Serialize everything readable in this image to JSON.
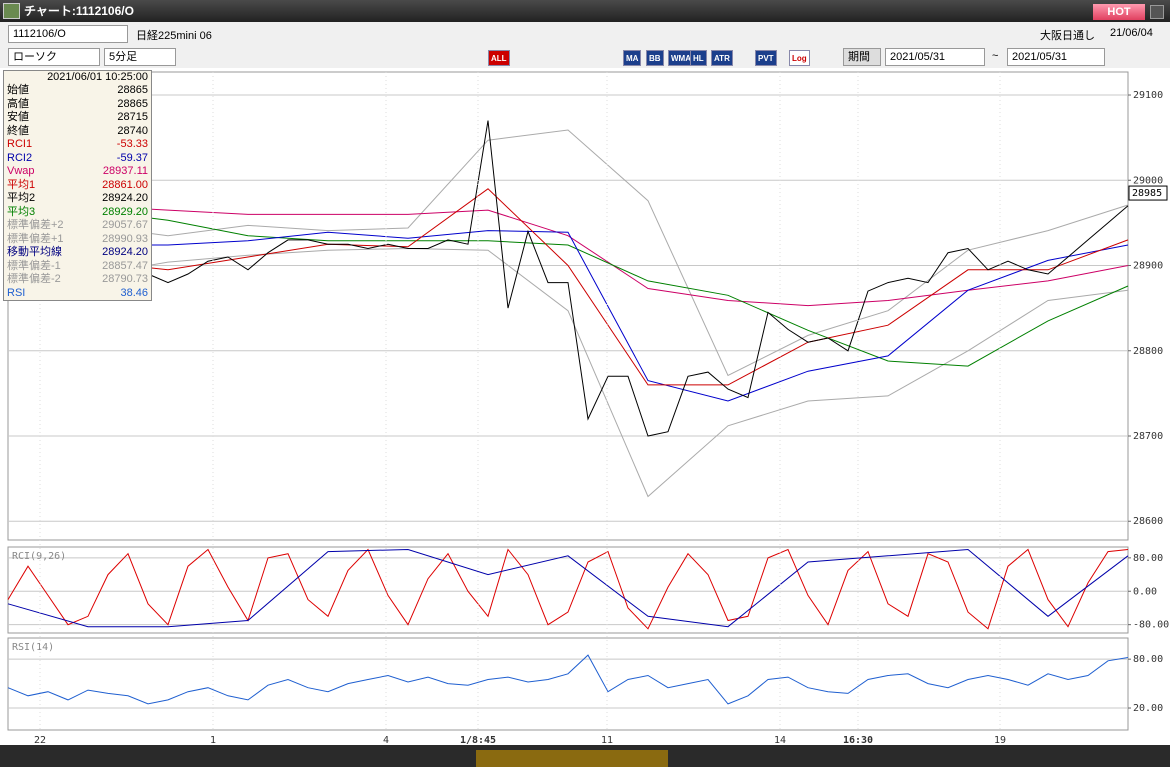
{
  "window": {
    "title": "チャート:1112106/O",
    "hot": "HOT"
  },
  "toolbar": {
    "symbol": "1112106/O",
    "instrument": "日経225mini 06",
    "session": "大阪日通し",
    "date": "21/06/04",
    "chart_kind": "ローソク",
    "interval": "5分足",
    "buttons": [
      "ALL",
      "MA",
      "BB",
      "WMA",
      "HL",
      "ATR",
      "PVT",
      "Log"
    ],
    "period": "期間",
    "from": "2021/05/31",
    "tilde": "~",
    "to": "2021/05/31"
  },
  "info_panel": {
    "time": "2021/06/01 10:25:00",
    "rows": [
      {
        "label": "始値",
        "value": "28865",
        "color": "#000000"
      },
      {
        "label": "高値",
        "value": "28865",
        "color": "#000000"
      },
      {
        "label": "安値",
        "value": "28715",
        "color": "#000000"
      },
      {
        "label": "終値",
        "value": "28740",
        "color": "#000000"
      },
      {
        "label": "RCI1",
        "value": "-53.33",
        "color": "#cc0000"
      },
      {
        "label": "RCI2",
        "value": "-59.37",
        "color": "#0000aa"
      },
      {
        "label": "Vwap",
        "value": "28937.11",
        "color": "#cc0066"
      },
      {
        "label": "平均1",
        "value": "28861.00",
        "color": "#cc0000"
      },
      {
        "label": "平均2",
        "value": "28924.20",
        "color": "#000000"
      },
      {
        "label": "平均3",
        "value": "28929.20",
        "color": "#008000"
      },
      {
        "label": "標準偏差+2",
        "value": "29057.67",
        "color": "#999999"
      },
      {
        "label": "標準偏差+1",
        "value": "28990.93",
        "color": "#999999"
      },
      {
        "label": "移動平均線",
        "value": "28924.20",
        "color": "#000080"
      },
      {
        "label": "標準偏差-1",
        "value": "28857.47",
        "color": "#999999"
      },
      {
        "label": "標準偏差-2",
        "value": "28790.73",
        "color": "#999999"
      },
      {
        "label": "RSI",
        "value": "38.46",
        "color": "#1f5fd0"
      }
    ]
  },
  "chart_data": [
    {
      "type": "line",
      "xlim": [
        0,
        112
      ],
      "ylim": [
        28578,
        29127
      ],
      "yticks": [
        28600,
        28700,
        28800,
        28900,
        29000,
        29100
      ],
      "grid": true,
      "last_price": 28985,
      "series": [
        {
          "color": "#aaaaaa",
          "x": [
            0,
            8,
            16,
            24,
            32,
            40,
            48,
            56,
            64,
            72,
            80,
            88,
            96,
            104,
            112
          ],
          "values": [
            28959,
            28947,
            28935,
            28947,
            28941,
            28944,
            29047,
            29059,
            28976,
            28771,
            28818,
            28847,
            28918,
            28941,
            28971
          ]
        },
        {
          "color": "#aaaaaa",
          "x": [
            0,
            8,
            16,
            24,
            32,
            40,
            48,
            56,
            64,
            72,
            80,
            88,
            96,
            104,
            112
          ],
          "values": [
            28879,
            28888,
            28904,
            28912,
            28918,
            28920,
            28918,
            28847,
            28629,
            28712,
            28741,
            28747,
            28800,
            28859,
            28871
          ]
        },
        {
          "color": "#cc0066",
          "x": [
            0,
            8,
            16,
            24,
            32,
            40,
            48,
            56,
            64,
            72,
            80,
            88,
            96,
            104,
            112
          ],
          "values": [
            28980,
            28970,
            28965,
            28960,
            28960,
            28960,
            28965,
            28935,
            28873,
            28859,
            28853,
            28859,
            28871,
            28882,
            28900
          ]
        },
        {
          "color": "#008000",
          "x": [
            0,
            8,
            16,
            24,
            32,
            40,
            48,
            56,
            64,
            72,
            80,
            88,
            96,
            104,
            112
          ],
          "values": [
            28971,
            28965,
            28953,
            28935,
            28929,
            28929,
            28929,
            28924,
            28882,
            28865,
            28824,
            28788,
            28782,
            28835,
            28876
          ]
        },
        {
          "color": "#0000cc",
          "x": [
            0,
            8,
            16,
            24,
            32,
            40,
            48,
            56,
            64,
            72,
            80,
            88,
            96,
            104,
            112
          ],
          "values": [
            28947,
            28924,
            28924,
            28929,
            28939,
            28932,
            28941,
            28939,
            28765,
            28741,
            28776,
            28794,
            28871,
            28906,
            28924
          ]
        },
        {
          "color": "#cc0000",
          "x": [
            0,
            8,
            16,
            24,
            32,
            40,
            48,
            56,
            64,
            72,
            80,
            88,
            96,
            104,
            112
          ],
          "values": [
            28895,
            28905,
            28895,
            28910,
            28925,
            28922,
            28990,
            28900,
            28760,
            28760,
            28810,
            28830,
            28895,
            28895,
            28930
          ]
        },
        {
          "color": "#000000",
          "x": [
            0,
            2,
            4,
            6,
            8,
            10,
            12,
            14,
            16,
            18,
            20,
            22,
            24,
            26,
            28,
            30,
            32,
            34,
            36,
            38,
            40,
            42,
            44,
            46,
            48,
            50,
            52,
            54,
            56,
            58,
            60,
            62,
            64,
            66,
            68,
            70,
            72,
            74,
            76,
            78,
            80,
            82,
            84,
            86,
            88,
            90,
            92,
            94,
            96,
            98,
            100,
            102,
            104,
            106,
            108,
            110,
            112
          ],
          "values": [
            28895,
            28890,
            28895,
            28890,
            28905,
            28905,
            28905,
            28890,
            28880,
            28890,
            28905,
            28910,
            28895,
            28915,
            28930,
            28930,
            28925,
            28925,
            28920,
            28925,
            28920,
            28920,
            28930,
            28925,
            29070,
            28850,
            28940,
            28880,
            28880,
            28720,
            28770,
            28770,
            28700,
            28705,
            28770,
            28775,
            28755,
            28745,
            28845,
            28825,
            28810,
            28815,
            28800,
            28870,
            28880,
            28885,
            28880,
            28915,
            28920,
            28895,
            28905,
            28895,
            28890,
            28910,
            28930,
            28950,
            28970
          ]
        }
      ]
    },
    {
      "type": "line",
      "title": "RCI(9,26)",
      "xlim": [
        0,
        112
      ],
      "ylim": [
        -100,
        106
      ],
      "grid": true,
      "yticks": [
        {
          "value": 80,
          "label": "80.00"
        },
        {
          "value": 0,
          "label": "0.00"
        },
        {
          "value": -80,
          "label": "-80.00"
        }
      ],
      "series": [
        {
          "color": "#dd0000",
          "x": [
            0,
            2,
            4,
            6,
            8,
            10,
            12,
            14,
            16,
            18,
            20,
            22,
            24,
            26,
            28,
            30,
            32,
            34,
            36,
            38,
            40,
            42,
            44,
            46,
            48,
            50,
            52,
            54,
            56,
            58,
            60,
            62,
            64,
            66,
            68,
            70,
            72,
            74,
            76,
            78,
            80,
            82,
            84,
            86,
            88,
            90,
            92,
            94,
            96,
            98,
            100,
            102,
            104,
            106,
            108,
            110,
            112
          ],
          "values": [
            -20,
            60,
            -10,
            -80,
            -60,
            40,
            90,
            -30,
            -80,
            60,
            100,
            10,
            -70,
            80,
            90,
            -20,
            -60,
            50,
            100,
            -10,
            -80,
            30,
            90,
            0,
            -60,
            100,
            40,
            -80,
            -50,
            70,
            95,
            -40,
            -90,
            10,
            90,
            40,
            -70,
            -60,
            80,
            100,
            -10,
            -80,
            50,
            95,
            -30,
            -60,
            90,
            70,
            -50,
            -90,
            60,
            100,
            -20,
            -85,
            20,
            95,
            100
          ]
        },
        {
          "color": "#0000aa",
          "x": [
            0,
            8,
            16,
            24,
            32,
            40,
            48,
            56,
            64,
            72,
            80,
            88,
            96,
            104,
            112
          ],
          "values": [
            -30,
            -85,
            -85,
            -70,
            95,
            100,
            40,
            85,
            -60,
            -85,
            70,
            85,
            100,
            -60,
            85
          ]
        }
      ]
    },
    {
      "type": "line",
      "title": "RSI(14)",
      "xlim": [
        0,
        112
      ],
      "ylim": [
        -7,
        106
      ],
      "grid": true,
      "yticks": [
        {
          "value": 80,
          "label": "80.00"
        },
        {
          "value": 20,
          "label": "20.00"
        }
      ],
      "xticks": [
        {
          "value": 3.2,
          "label": "22"
        },
        {
          "value": 20.5,
          "label": "1"
        },
        {
          "value": 37.8,
          "label": "4"
        },
        {
          "value": 47,
          "label": "1/8:45"
        },
        {
          "value": 59.9,
          "label": "11"
        },
        {
          "value": 77.2,
          "label": "14"
        },
        {
          "value": 85,
          "label": "16:30"
        },
        {
          "value": 99.2,
          "label": "19"
        }
      ],
      "series": [
        {
          "color": "#1f5fd0",
          "x": [
            0,
            2,
            4,
            6,
            8,
            10,
            12,
            14,
            16,
            18,
            20,
            22,
            24,
            26,
            28,
            30,
            32,
            34,
            36,
            38,
            40,
            42,
            44,
            46,
            48,
            50,
            52,
            54,
            56,
            58,
            60,
            62,
            64,
            66,
            68,
            70,
            72,
            74,
            76,
            78,
            80,
            82,
            84,
            86,
            88,
            90,
            92,
            94,
            96,
            98,
            100,
            102,
            104,
            106,
            108,
            110,
            112
          ],
          "values": [
            45,
            35,
            40,
            30,
            42,
            38,
            35,
            25,
            30,
            40,
            45,
            35,
            30,
            48,
            55,
            45,
            40,
            50,
            55,
            60,
            52,
            58,
            50,
            48,
            55,
            58,
            52,
            55,
            62,
            85,
            40,
            55,
            60,
            45,
            50,
            55,
            25,
            35,
            55,
            58,
            45,
            40,
            38,
            55,
            60,
            62,
            50,
            45,
            55,
            60,
            55,
            48,
            62,
            55,
            60,
            78,
            82
          ]
        }
      ]
    }
  ]
}
